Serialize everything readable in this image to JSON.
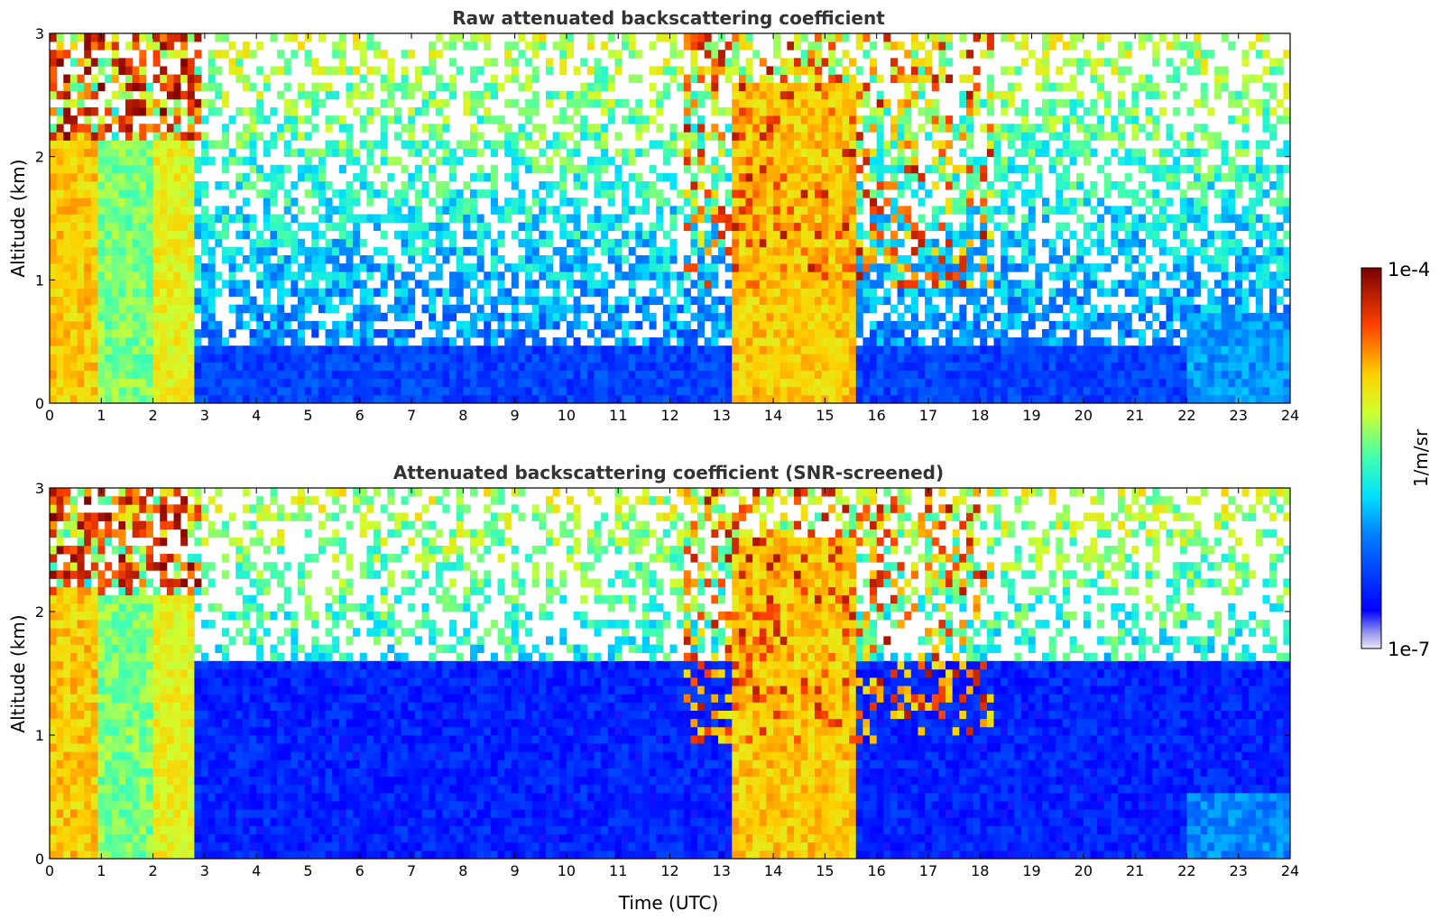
{
  "chart_data": [
    {
      "type": "heatmap",
      "title": "Raw attenuated backscattering coefficient",
      "xlabel": "",
      "ylabel": "Altitude (km)",
      "xlim": [
        0,
        24
      ],
      "ylim": [
        0,
        3
      ],
      "x_ticks": [
        "0",
        "1",
        "2",
        "3",
        "4",
        "5",
        "6",
        "7",
        "8",
        "9",
        "10",
        "11",
        "12",
        "13",
        "14",
        "15",
        "16",
        "17",
        "18",
        "19",
        "20",
        "21",
        "22",
        "23",
        "24"
      ],
      "y_ticks": [
        "0",
        "1",
        "2",
        "3"
      ],
      "screened": false,
      "features": [
        {
          "kind": "dense-layer",
          "x": [
            0.0,
            0.95
          ],
          "y": [
            0,
            2.2
          ],
          "level": 0.72
        },
        {
          "kind": "dense-layer",
          "x": [
            0.95,
            2.0
          ],
          "y": [
            0,
            2.15
          ],
          "level": 0.55
        },
        {
          "kind": "dense-layer",
          "x": [
            2.0,
            2.85
          ],
          "y": [
            0,
            2.1
          ],
          "level": 0.66
        },
        {
          "kind": "cloud-top",
          "x": [
            0.0,
            2.9
          ],
          "y": [
            2.1,
            3.0
          ],
          "level": 1.0
        },
        {
          "kind": "dense-layer",
          "x": [
            13.15,
            15.6
          ],
          "y": [
            0,
            2.6
          ],
          "level": 0.72
        },
        {
          "kind": "cirrus",
          "x": [
            12.3,
            18.3
          ],
          "y": [
            0.9,
            3.0
          ],
          "level": 0.95
        },
        {
          "kind": "boundary-layer",
          "x": [
            2.85,
            24.0
          ],
          "y": [
            0,
            0.45
          ],
          "level": 0.2
        },
        {
          "kind": "aerosol-plume",
          "x": [
            22.0,
            24.0
          ],
          "y": [
            0,
            0.75
          ],
          "level": 0.32
        }
      ]
    },
    {
      "type": "heatmap",
      "title": "Attenuated backscattering coefficient (SNR-screened)",
      "xlabel": "Time (UTC)",
      "ylabel": "Altitude (km)",
      "xlim": [
        0,
        24
      ],
      "ylim": [
        0,
        3
      ],
      "x_ticks": [
        "0",
        "1",
        "2",
        "3",
        "4",
        "5",
        "6",
        "7",
        "8",
        "9",
        "10",
        "11",
        "12",
        "13",
        "14",
        "15",
        "16",
        "17",
        "18",
        "19",
        "20",
        "21",
        "22",
        "23",
        "24"
      ],
      "y_ticks": [
        "0",
        "1",
        "2",
        "3"
      ],
      "screened": true,
      "features": [
        {
          "kind": "dense-layer",
          "x": [
            0.0,
            0.95
          ],
          "y": [
            0,
            2.2
          ],
          "level": 0.72
        },
        {
          "kind": "dense-layer",
          "x": [
            0.95,
            2.0
          ],
          "y": [
            0,
            2.15
          ],
          "level": 0.55
        },
        {
          "kind": "dense-layer",
          "x": [
            2.0,
            2.85
          ],
          "y": [
            0,
            2.1
          ],
          "level": 0.66
        },
        {
          "kind": "cloud-top",
          "x": [
            0.0,
            2.9
          ],
          "y": [
            2.1,
            3.0
          ],
          "level": 1.0
        },
        {
          "kind": "dense-layer",
          "x": [
            13.15,
            15.6
          ],
          "y": [
            0,
            2.6
          ],
          "level": 0.72
        },
        {
          "kind": "cirrus",
          "x": [
            12.3,
            18.3
          ],
          "y": [
            0.9,
            3.0
          ],
          "level": 0.95
        },
        {
          "kind": "boundary-layer",
          "x": [
            2.85,
            24.0
          ],
          "y": [
            0,
            1.6
          ],
          "level": 0.15
        },
        {
          "kind": "aerosol-plume",
          "x": [
            22.0,
            24.0
          ],
          "y": [
            0,
            0.5
          ],
          "level": 0.3
        }
      ]
    }
  ],
  "colorbar": {
    "label": "1/m/sr",
    "min_label": "1e-7",
    "max_label": "1e-4",
    "colormap": "jet"
  }
}
